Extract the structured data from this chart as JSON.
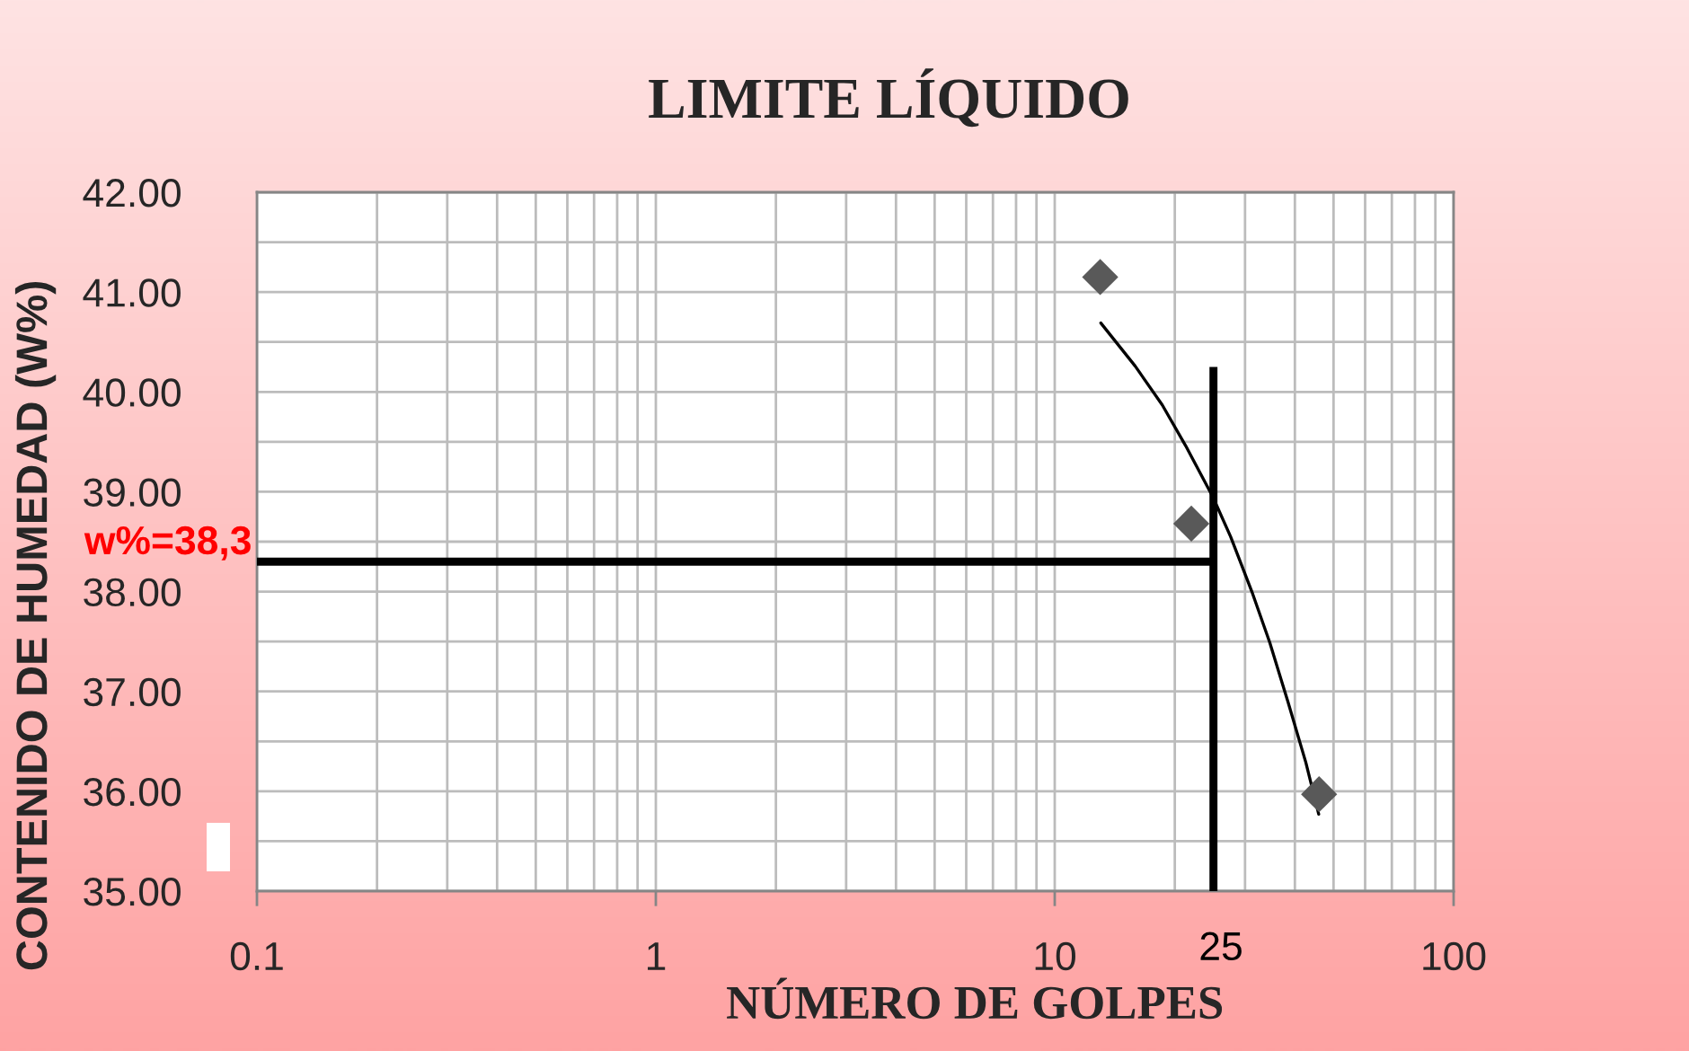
{
  "chart_data": {
    "type": "scatter",
    "title": "LIMITE LÍQUIDO",
    "xlabel": "NÚMERO DE GOLPES",
    "ylabel": "CONTENIDO DE HUMEDAD (W%)",
    "series": [
      {
        "color": "#595959",
        "marker": "diamond",
        "x": [
          13,
          22,
          46
        ],
        "values": [
          41.15,
          38.68,
          35.97
        ]
      },
      {
        "type": "line",
        "color": "#000000",
        "x": [
          13.05,
          15.9,
          18.6,
          21.3,
          24.9,
          27.6,
          31.2,
          34.6,
          38.4,
          42.6,
          45.9
        ],
        "values": [
          40.69,
          40.26,
          39.87,
          39.46,
          38.95,
          38.55,
          38.0,
          37.49,
          36.9,
          36.29,
          35.77
        ]
      }
    ],
    "ref_lines": [
      {
        "axis": "x",
        "value": 25,
        "label": "25",
        "color": "#000000"
      },
      {
        "axis": "y",
        "value": 38.3,
        "label": "w%=38,3",
        "color": "#000000"
      }
    ],
    "log": "x",
    "xlim": [
      0.1,
      100
    ],
    "xticks": [
      0.1,
      1,
      10,
      100
    ],
    "ylim": [
      35,
      42
    ],
    "yticks": [
      {
        "value": 35,
        "label": "35.00"
      },
      {
        "value": 36,
        "label": "36.00"
      },
      {
        "value": 37,
        "label": "37.00"
      },
      {
        "value": 38,
        "label": "38.00"
      },
      {
        "value": 39,
        "label": "39.00"
      },
      {
        "value": 40,
        "label": "40.00"
      },
      {
        "value": 41,
        "label": "41.00"
      },
      {
        "value": 42,
        "label": "42.00"
      }
    ],
    "grid": true
  }
}
